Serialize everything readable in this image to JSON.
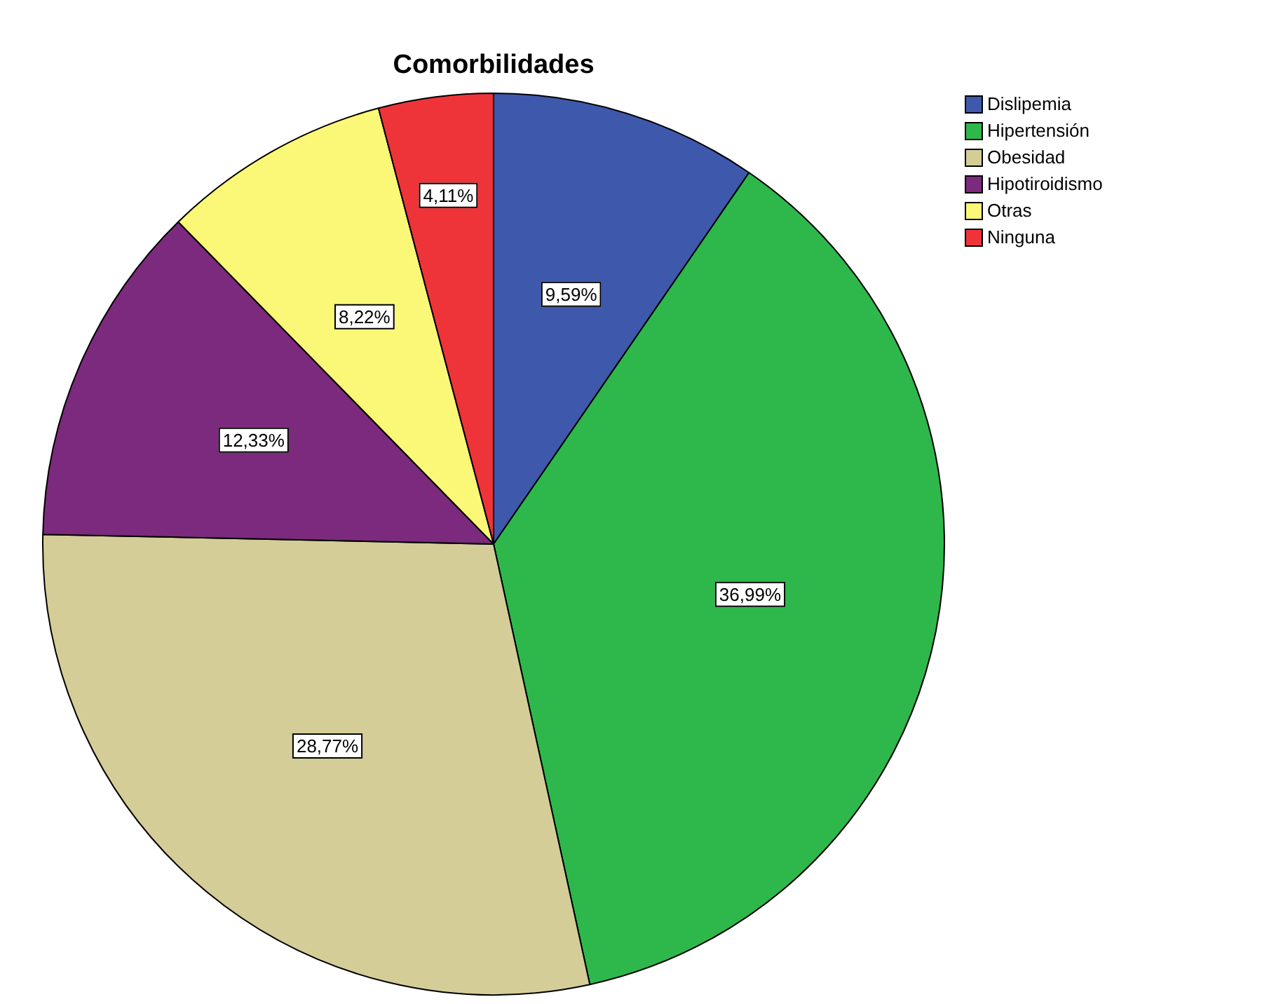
{
  "chart_data": {
    "type": "pie",
    "title": "Comorbilidades",
    "categories": [
      "Dislipemia",
      "Hipertensión",
      "Obesidad",
      "Hipotiroidismo",
      "Otras",
      "Ninguna"
    ],
    "values": [
      9.59,
      36.99,
      28.77,
      12.33,
      8.22,
      4.11
    ],
    "colors": [
      "#3e58ac",
      "#2eb84b",
      "#d4cd98",
      "#7b2a7d",
      "#fbf877",
      "#ef3439"
    ],
    "value_labels": [
      "9,59%",
      "36,99%",
      "28,77%",
      "12,33%",
      "8,22%",
      "4,11%"
    ],
    "legend": "top right"
  }
}
